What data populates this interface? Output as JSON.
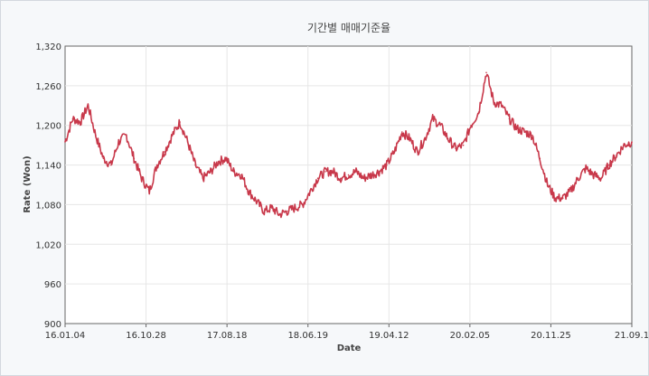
{
  "chart_data": {
    "type": "line",
    "title": "기간별 매매기준율",
    "xlabel": "Date",
    "ylabel": "Rate (Won)",
    "ylim": [
      900,
      1320
    ],
    "yticks": [
      "1,320",
      "1,260",
      "1,200",
      "1,140",
      "1,080",
      "1,020",
      "960",
      "900"
    ],
    "xticks": [
      "16.01.04",
      "16.10.28",
      "17.08.18",
      "18.06.19",
      "19.04.12",
      "20.02.05",
      "20.11.25",
      "21.09.1"
    ],
    "grid": true,
    "line_color": "#c8384a",
    "series": [
      {
        "x": [
          "16.01.04",
          "16.02.01",
          "16.02.29",
          "16.03.28",
          "16.04.25",
          "16.05.23",
          "16.06.20",
          "16.07.18",
          "16.08.15",
          "16.09.12",
          "16.10.10",
          "16.11.07",
          "16.12.05",
          "17.01.02",
          "17.01.30",
          "17.02.27",
          "17.03.27",
          "17.04.24",
          "17.05.22",
          "17.06.19",
          "17.07.17",
          "17.08.14",
          "17.09.11",
          "17.10.09",
          "17.11.06",
          "17.12.04",
          "18.01.01",
          "18.01.29",
          "18.02.26",
          "18.03.26",
          "18.04.23",
          "18.05.21",
          "18.06.18",
          "18.07.16",
          "18.08.13",
          "18.09.10",
          "18.10.08",
          "18.11.05",
          "18.12.03",
          "18.12.31",
          "19.01.28",
          "19.02.25",
          "19.03.25",
          "19.04.22",
          "19.05.20",
          "19.06.17",
          "19.07.15",
          "19.08.12",
          "19.09.09",
          "19.10.07",
          "19.11.04",
          "19.12.02",
          "19.12.30",
          "20.01.27",
          "20.02.24",
          "20.03.23",
          "20.04.20",
          "20.05.18",
          "20.06.15",
          "20.07.13",
          "20.08.10",
          "20.09.07",
          "20.10.05",
          "20.11.02",
          "20.11.30",
          "20.12.28",
          "21.01.25",
          "21.02.22",
          "21.03.22",
          "21.04.19",
          "21.05.17",
          "21.06.14",
          "21.07.12",
          "21.08.09",
          "21.09.1"
        ],
        "values": [
          1175,
          1210,
          1205,
          1230,
          1185,
          1150,
          1140,
          1175,
          1185,
          1150,
          1120,
          1100,
          1140,
          1160,
          1185,
          1205,
          1175,
          1140,
          1120,
          1130,
          1145,
          1150,
          1130,
          1125,
          1100,
          1085,
          1070,
          1075,
          1065,
          1070,
          1075,
          1080,
          1100,
          1120,
          1130,
          1130,
          1120,
          1125,
          1130,
          1120,
          1125,
          1130,
          1140,
          1160,
          1190,
          1180,
          1160,
          1180,
          1210,
          1200,
          1180,
          1165,
          1170,
          1200,
          1220,
          1280,
          1235,
          1230,
          1210,
          1195,
          1190,
          1185,
          1150,
          1110,
          1090,
          1090,
          1100,
          1120,
          1135,
          1125,
          1120,
          1140,
          1155,
          1170,
          1175
        ]
      }
    ]
  }
}
